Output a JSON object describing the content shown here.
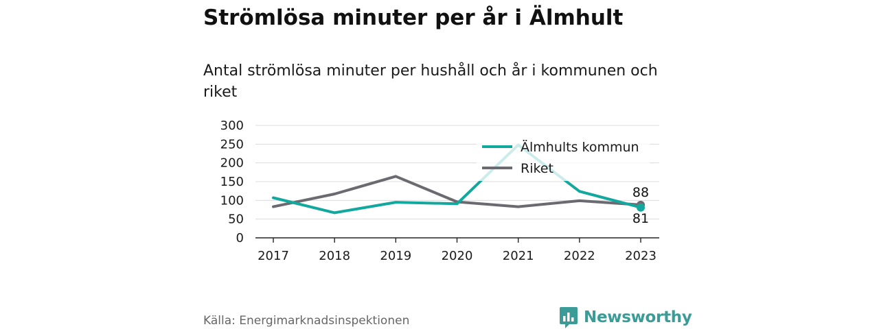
{
  "title": "Strömlösa minuter per år i Älmhult",
  "subtitle": "Antal strömlösa minuter per hushåll och år i kommunen och riket",
  "source": "Källa: Energimarknadsinspektionen",
  "brand": {
    "name": "Newsworthy",
    "icon": "bar-chart-speech-bubble-icon",
    "color": "#3a9b97"
  },
  "chart_data": {
    "type": "line",
    "title": "",
    "xlabel": "",
    "ylabel": "",
    "x": [
      "2017",
      "2018",
      "2019",
      "2020",
      "2021",
      "2022",
      "2023"
    ],
    "ylim": [
      0,
      300
    ],
    "yticks": [
      "0",
      "50",
      "100",
      "150",
      "200",
      "250",
      "300"
    ],
    "grid": true,
    "legend": "top-right",
    "series": [
      {
        "name": "Älmhults kommun",
        "color": "#13a89e",
        "values": [
          107,
          67,
          95,
          91,
          248,
          124,
          81
        ]
      },
      {
        "name": "Riket",
        "color": "#6b6a70",
        "values": [
          83,
          117,
          164,
          96,
          83,
          99,
          88
        ]
      }
    ],
    "end_labels": [
      "88",
      "81"
    ]
  }
}
